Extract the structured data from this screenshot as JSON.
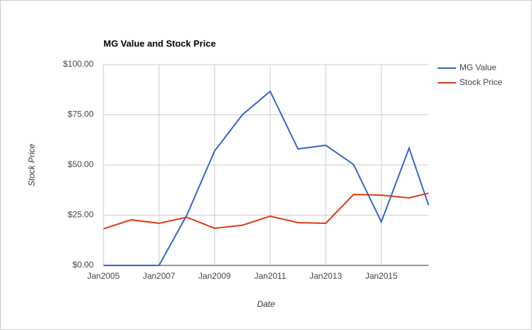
{
  "chart_data": {
    "type": "line",
    "title": "MG Value and Stock Price",
    "x_label": "Date",
    "y_label": "Stock Price",
    "x": [
      2005,
      2006,
      2007,
      2008,
      2009,
      2010,
      2011,
      2012,
      2013,
      2014,
      2015,
      2016,
      2016.7
    ],
    "series": [
      {
        "name": "MG Value",
        "color": "#3366cc",
        "values": [
          0,
          0,
          0,
          25,
          57,
          75,
          86.7,
          58,
          59.8,
          50.3,
          21.7,
          58.4,
          30
        ]
      },
      {
        "name": "Stock Price",
        "color": "#dc3912",
        "values": [
          18.2,
          22.7,
          21,
          24,
          18.5,
          20,
          24.5,
          21.3,
          21,
          35.3,
          35,
          33.6,
          36
        ]
      }
    ],
    "xlim": [
      2005,
      2016.7
    ],
    "xticks": [
      {
        "value": 2005,
        "label": "Jan2005"
      },
      {
        "value": 2007,
        "label": "Jan2007"
      },
      {
        "value": 2009,
        "label": "Jan2009"
      },
      {
        "value": 2011,
        "label": "Jan2011"
      },
      {
        "value": 2013,
        "label": "Jan2013"
      },
      {
        "value": 2015,
        "label": "Jan2015"
      }
    ],
    "ylim": [
      0,
      100
    ],
    "yticks": [
      {
        "value": 0,
        "label": "$0.00"
      },
      {
        "value": 25,
        "label": "$25.00"
      },
      {
        "value": 50,
        "label": "$50.00"
      },
      {
        "value": 75,
        "label": "$75.00"
      },
      {
        "value": 100,
        "label": "$100.00"
      }
    ],
    "grid": true,
    "legend": "right"
  }
}
